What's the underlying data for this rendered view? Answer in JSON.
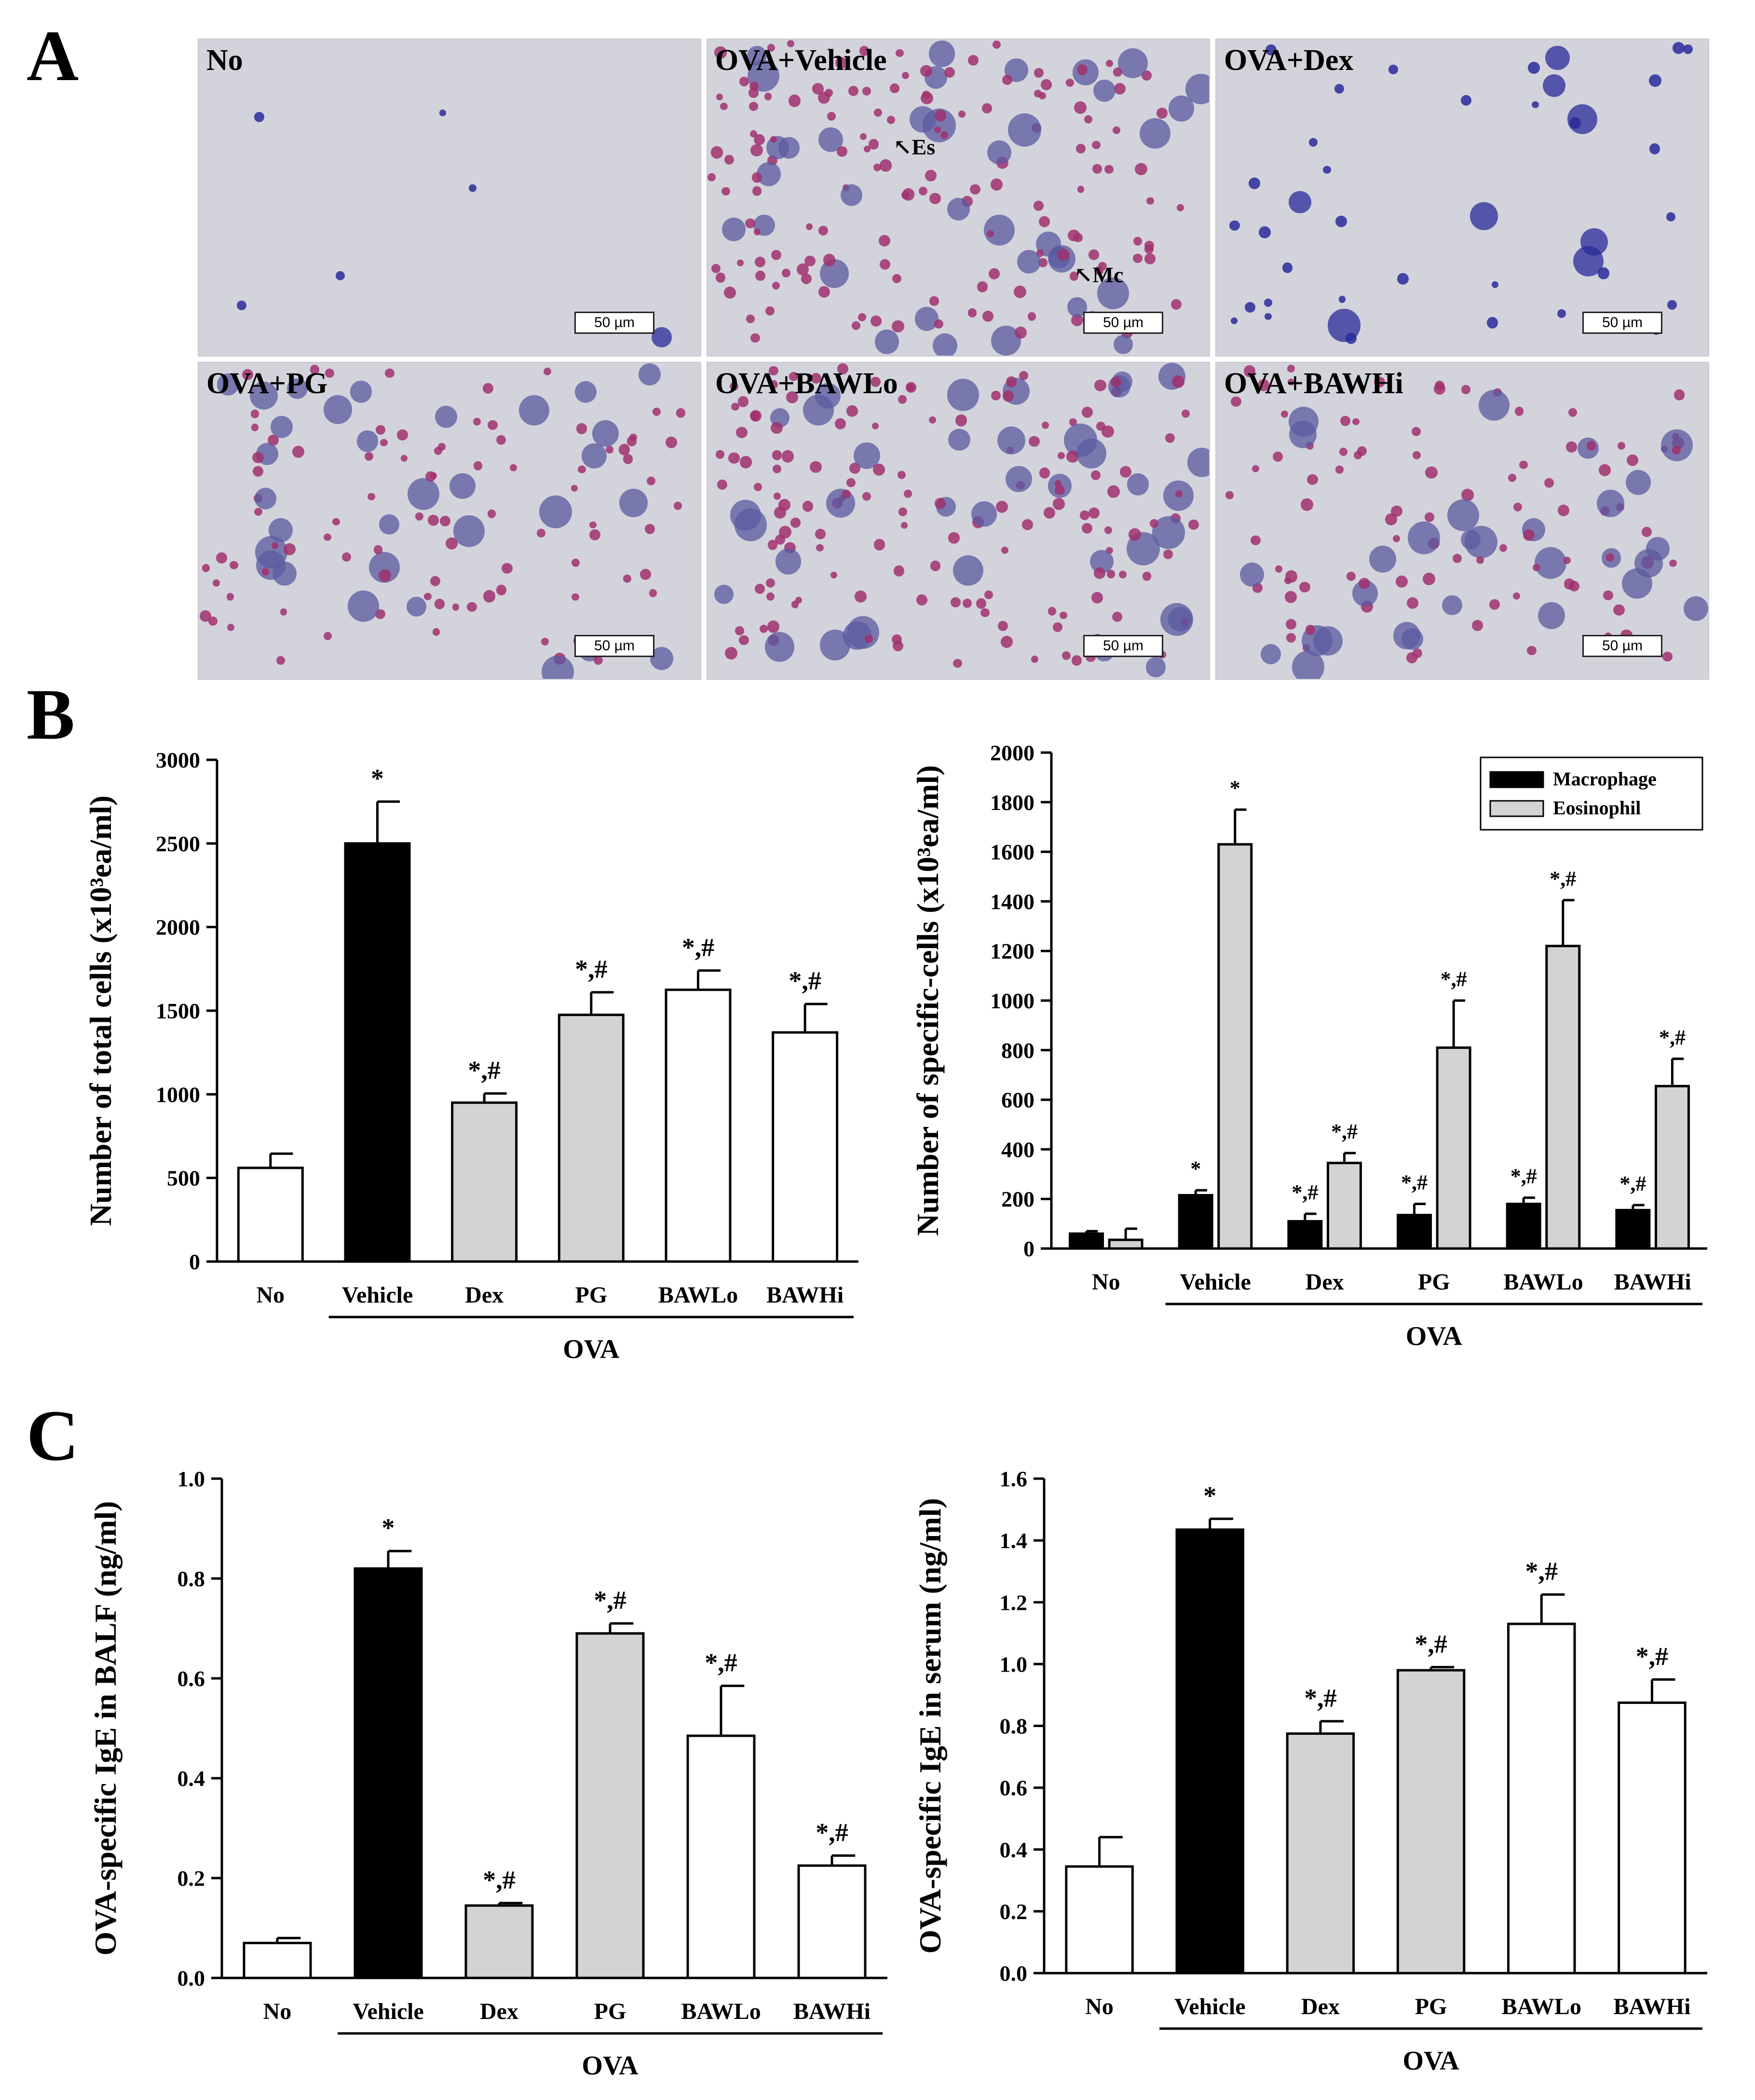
{
  "panels": {
    "a": "A",
    "b": "B",
    "c": "C"
  },
  "micrographs": [
    {
      "label": "No",
      "scale": "50 µm",
      "density": "low"
    },
    {
      "label": "OVA+Vehicle",
      "scale": "50 µm",
      "density": "high",
      "arrows": [
        "Es",
        "Mc"
      ]
    },
    {
      "label": "OVA+Dex",
      "scale": "50 µm",
      "density": "low-dark"
    },
    {
      "label": "OVA+PG",
      "scale": "50 µm",
      "density": "medium"
    },
    {
      "label": "OVA+BAWLo",
      "scale": "50 µm",
      "density": "high"
    },
    {
      "label": "OVA+BAWHi",
      "scale": "50 µm",
      "density": "medium"
    }
  ],
  "colors": {
    "white": "#ffffff",
    "black": "#000000",
    "gray": "#d3d3d3",
    "micro_bg": "#d3d3db",
    "eosinophil": "#a0306e",
    "macrophage": "#5a5aa0"
  },
  "chart_data": [
    {
      "id": "total",
      "type": "bar",
      "ylabel": "Number of total cells (x10³ea/ml)",
      "ylim": [
        0,
        3000
      ],
      "yticks": [
        0,
        500,
        1000,
        1500,
        2000,
        2500,
        3000
      ],
      "categories": [
        "No",
        "Vehicle",
        "Dex",
        "PG",
        "BAWLo",
        "BAWHi"
      ],
      "group_label": "OVA",
      "series": [
        {
          "values": [
            560,
            2500,
            950,
            1475,
            1625,
            1370
          ],
          "errors": [
            85,
            250,
            55,
            135,
            115,
            170
          ],
          "colors": [
            "#ffffff",
            "#000000",
            "#d3d3d3",
            "#d3d3d3",
            "#ffffff",
            "#ffffff"
          ]
        }
      ],
      "annotations": [
        "",
        "*",
        "*,#",
        "*,#",
        "*,#",
        "*,#"
      ]
    },
    {
      "id": "specific",
      "type": "bar",
      "ylabel": "Number of specific-cells (x10³ea/ml)",
      "ylim": [
        0,
        2000
      ],
      "yticks": [
        0,
        200,
        400,
        600,
        800,
        1000,
        1200,
        1400,
        1600,
        1800,
        2000
      ],
      "categories": [
        "No",
        "Vehicle",
        "Dex",
        "PG",
        "BAWLo",
        "BAWHi"
      ],
      "group_label": "OVA",
      "legend": "top-right",
      "series": [
        {
          "name": "Macrophage",
          "color": "#000000",
          "values": [
            60,
            215,
            110,
            135,
            180,
            155
          ],
          "errors": [
            10,
            20,
            30,
            45,
            25,
            20
          ],
          "annotations": [
            "",
            "*",
            "*,#",
            "*,#",
            "*,#",
            "*,#"
          ]
        },
        {
          "name": "Eosinophil",
          "color": "#d3d3d3",
          "values": [
            35,
            1630,
            345,
            810,
            1220,
            655
          ],
          "errors": [
            45,
            140,
            40,
            190,
            185,
            110
          ],
          "annotations": [
            "",
            "*",
            "*,#",
            "*,#",
            "*,#",
            "*,#"
          ]
        }
      ]
    },
    {
      "id": "balf",
      "type": "bar",
      "ylabel": "OVA-specific IgE in BALF (ng/ml)",
      "ylim": [
        0,
        1.0
      ],
      "yticks": [
        "0.0",
        "0.2",
        "0.4",
        "0.6",
        "0.8",
        "1.0"
      ],
      "categories": [
        "No",
        "Vehicle",
        "Dex",
        "PG",
        "BAWLo",
        "BAWHi"
      ],
      "group_label": "OVA",
      "series": [
        {
          "values": [
            0.07,
            0.82,
            0.145,
            0.69,
            0.485,
            0.225
          ],
          "errors": [
            0.01,
            0.035,
            0.005,
            0.02,
            0.1,
            0.02
          ],
          "colors": [
            "#ffffff",
            "#000000",
            "#d3d3d3",
            "#d3d3d3",
            "#ffffff",
            "#ffffff"
          ]
        }
      ],
      "annotations": [
        "",
        "*",
        "*,#",
        "*,#",
        "*,#",
        "*,#"
      ]
    },
    {
      "id": "serum",
      "type": "bar",
      "ylabel": "OVA-specific IgE in serum (ng/ml)",
      "ylim": [
        0,
        1.6
      ],
      "yticks": [
        "0.0",
        "0.2",
        "0.4",
        "0.6",
        "0.8",
        "1.0",
        "1.2",
        "1.4",
        "1.6"
      ],
      "categories": [
        "No",
        "Vehicle",
        "Dex",
        "PG",
        "BAWLo",
        "BAWHi"
      ],
      "group_label": "OVA",
      "series": [
        {
          "values": [
            0.345,
            1.435,
            0.775,
            0.98,
            1.13,
            0.875
          ],
          "errors": [
            0.095,
            0.035,
            0.04,
            0.01,
            0.095,
            0.075
          ],
          "colors": [
            "#ffffff",
            "#000000",
            "#d3d3d3",
            "#d3d3d3",
            "#ffffff",
            "#ffffff"
          ]
        }
      ],
      "annotations": [
        "",
        "*",
        "*,#",
        "*,#",
        "*,#",
        "*,#"
      ]
    }
  ]
}
